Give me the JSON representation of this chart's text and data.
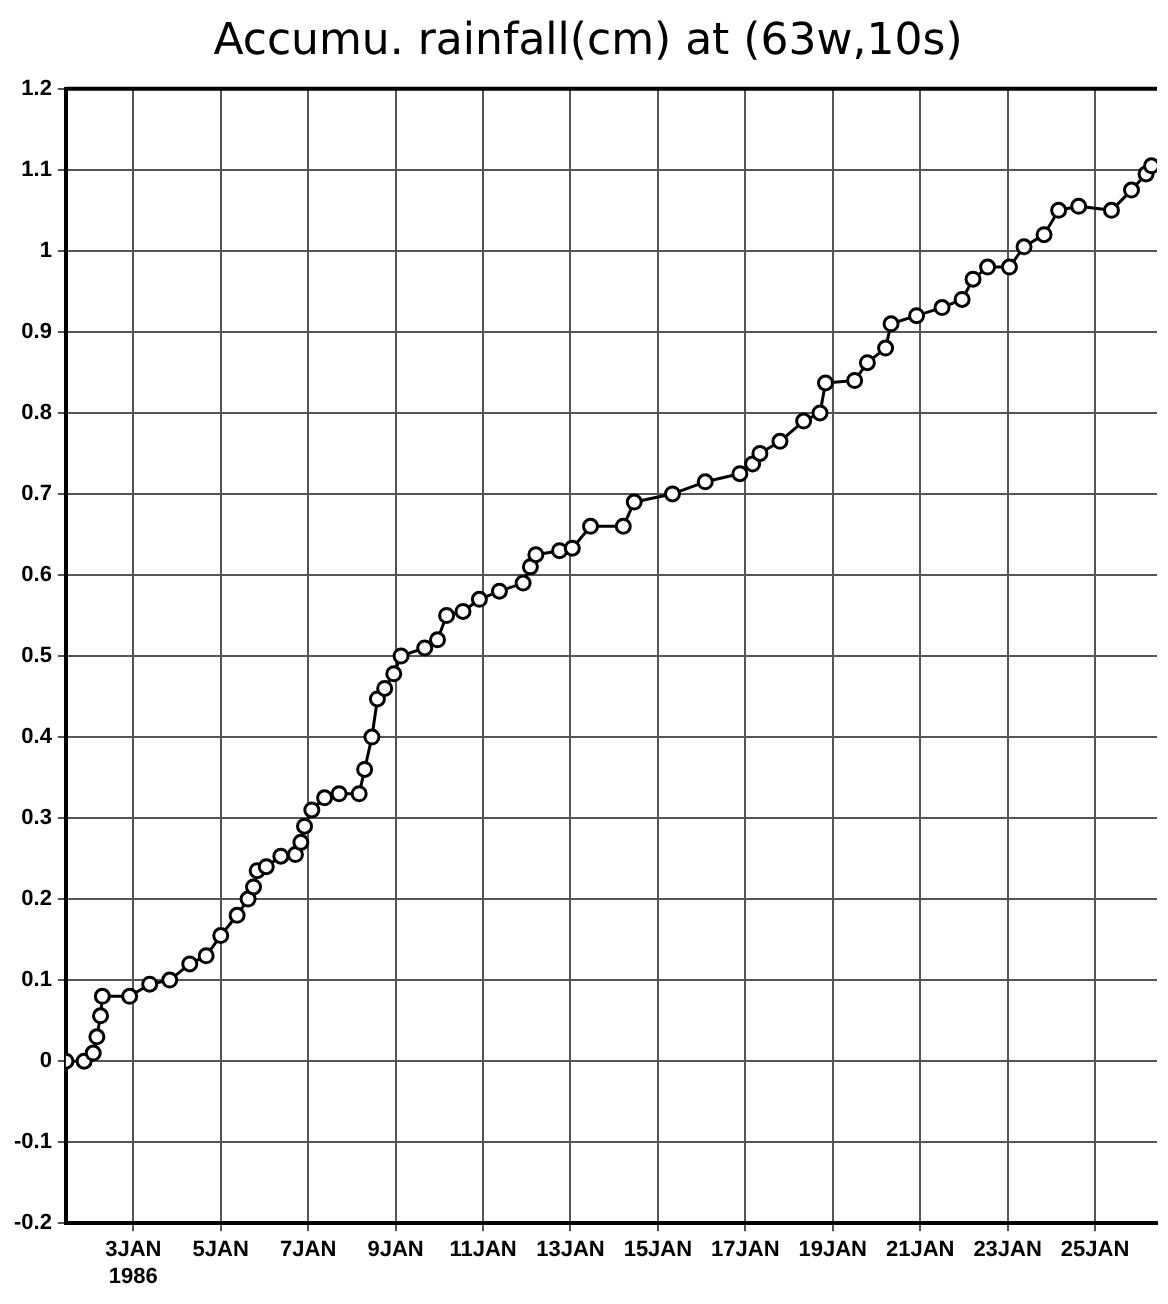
{
  "chart_data": {
    "type": "line",
    "title": "Accumu. rainfall(cm) at (63w,10s)",
    "marker": "circle",
    "grid": true,
    "xlim": [
      "1986-01-01T11:00",
      "1986-01-26T10:00"
    ],
    "xticks": [
      {
        "value": "1986-01-03",
        "label": "3JAN\n1986"
      },
      {
        "value": "1986-01-05",
        "label": "5JAN"
      },
      {
        "value": "1986-01-07",
        "label": "7JAN"
      },
      {
        "value": "1986-01-09",
        "label": "9JAN"
      },
      {
        "value": "1986-01-11",
        "label": "11JAN"
      },
      {
        "value": "1986-01-13",
        "label": "13JAN"
      },
      {
        "value": "1986-01-15",
        "label": "15JAN"
      },
      {
        "value": "1986-01-17",
        "label": "17JAN"
      },
      {
        "value": "1986-01-19",
        "label": "19JAN"
      },
      {
        "value": "1986-01-21",
        "label": "21JAN"
      },
      {
        "value": "1986-01-23",
        "label": "23JAN"
      },
      {
        "value": "1986-01-25",
        "label": "25JAN"
      }
    ],
    "ylim": [
      -0.2,
      1.2
    ],
    "yticks": [
      -0.2,
      -0.1,
      0,
      0.1,
      0.2,
      0.3,
      0.4,
      0.5,
      0.6,
      0.7,
      0.8,
      0.9,
      1,
      1.1,
      1.2
    ],
    "x": [
      "1986-01-01T11:00",
      "1986-01-01T21:00",
      "1986-01-02T02:00",
      "1986-01-02T04:00",
      "1986-01-02T06:00",
      "1986-01-02T07:00",
      "1986-01-02T22:00",
      "1986-01-03T09:00",
      "1986-01-03T20:00",
      "1986-01-04T07:00",
      "1986-01-04T16:00",
      "1986-01-05T00:00",
      "1986-01-05T09:00",
      "1986-01-05T15:00",
      "1986-01-05T18:00",
      "1986-01-05T20:00",
      "1986-01-06T01:00",
      "1986-01-06T09:00",
      "1986-01-06T17:00",
      "1986-01-06T20:00",
      "1986-01-06T22:00",
      "1986-01-07T02:00",
      "1986-01-07T09:00",
      "1986-01-07T17:00",
      "1986-01-08T04:00",
      "1986-01-08T07:00",
      "1986-01-08T11:00",
      "1986-01-08T14:00",
      "1986-01-08T18:00",
      "1986-01-08T23:00",
      "1986-01-09T03:00",
      "1986-01-09T16:00",
      "1986-01-09T23:00",
      "1986-01-10T04:00",
      "1986-01-10T13:00",
      "1986-01-10T22:00",
      "1986-01-11T09:00",
      "1986-01-11T22:00",
      "1986-01-12T02:00",
      "1986-01-12T05:00",
      "1986-01-12T18:00",
      "1986-01-13T01:00",
      "1986-01-13T11:00",
      "1986-01-14T05:00",
      "1986-01-14T11:00",
      "1986-01-15T08:00",
      "1986-01-16T02:00",
      "1986-01-16T21:00",
      "1986-01-17T04:00",
      "1986-01-17T08:00",
      "1986-01-17T19:00",
      "1986-01-18T08:00",
      "1986-01-18T17:00",
      "1986-01-18T20:00",
      "1986-01-19T12:00",
      "1986-01-19T19:00",
      "1986-01-20T05:00",
      "1986-01-20T08:00",
      "1986-01-20T22:00",
      "1986-01-21T12:00",
      "1986-01-21T23:00",
      "1986-01-22T05:00",
      "1986-01-22T13:00",
      "1986-01-23T01:00",
      "1986-01-23T09:00",
      "1986-01-23T20:00",
      "1986-01-24T04:00",
      "1986-01-24T15:00",
      "1986-01-25T09:00",
      "1986-01-25T20:00",
      "1986-01-26T04:00",
      "1986-01-26T07:00"
    ],
    "series": [
      {
        "color": "#000000",
        "values": [
          0,
          0,
          0.01,
          0.03,
          0.056,
          0.08,
          0.08,
          0.095,
          0.1,
          0.12,
          0.13,
          0.155,
          0.18,
          0.2,
          0.215,
          0.235,
          0.24,
          0.253,
          0.255,
          0.27,
          0.29,
          0.31,
          0.325,
          0.33,
          0.33,
          0.36,
          0.4,
          0.447,
          0.46,
          0.478,
          0.5,
          0.51,
          0.52,
          0.55,
          0.555,
          0.57,
          0.58,
          0.59,
          0.61,
          0.625,
          0.63,
          0.633,
          0.66,
          0.66,
          0.69,
          0.7,
          0.715,
          0.725,
          0.737,
          0.75,
          0.765,
          0.79,
          0.8,
          0.837,
          0.84,
          0.862,
          0.88,
          0.91,
          0.92,
          0.93,
          0.94,
          0.965,
          0.98,
          0.98,
          1.005,
          1.02,
          1.05,
          1.055,
          1.05,
          1.075,
          1.095,
          1.105
        ]
      }
    ]
  }
}
